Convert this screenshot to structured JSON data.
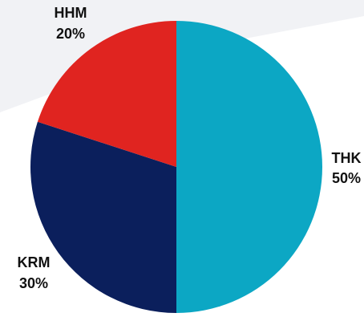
{
  "chart_data": {
    "type": "pie",
    "title": "",
    "start_angle": "top",
    "direction": "clockwise",
    "slices": [
      {
        "label": "THK",
        "value": 50,
        "display": "50%",
        "color": "#0CA7C4"
      },
      {
        "label": "KRM",
        "value": 30,
        "display": "30%",
        "color": "#0B1F5C"
      },
      {
        "label": "HHM",
        "value": 20,
        "display": "20%",
        "color": "#E02420"
      }
    ],
    "background_shape_color": "#F1F2F5"
  }
}
